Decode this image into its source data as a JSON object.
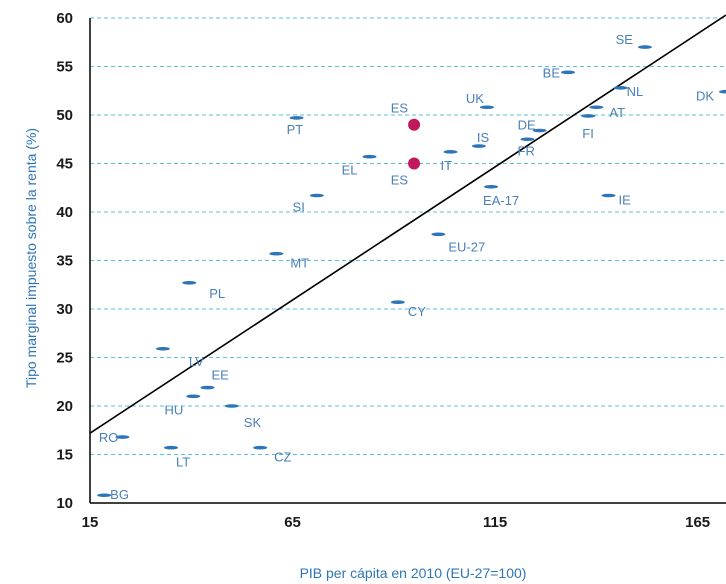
{
  "chart_data": {
    "type": "scatter",
    "title": "",
    "xlabel": "PIB per cápita en 2010  (EU-27=100)",
    "ylabel": "Tipo marginal impuesto sobre la renta (%)",
    "xlim": [
      15,
      172
    ],
    "ylim": [
      10,
      60
    ],
    "xticks": [
      "15",
      "65",
      "115",
      "165"
    ],
    "yticks": [
      "10",
      "15",
      "20",
      "25",
      "30",
      "35",
      "40",
      "45",
      "50",
      "55",
      "60"
    ],
    "grid": "horizontal-dashed",
    "colors": {
      "grid": "#5bc0de",
      "marker": "#2e75b6",
      "highlight": "#c2185b",
      "label": "#4a7fb8",
      "axis_title": "#2e75b6"
    },
    "trendline": {
      "x": [
        15,
        172
      ],
      "y": [
        17.2,
        60.3
      ]
    },
    "points": [
      {
        "label": "BG",
        "x": 18.5,
        "y": 10.8
      },
      {
        "label": "RO",
        "x": 23,
        "y": 16.8
      },
      {
        "label": "LT",
        "x": 35,
        "y": 15.7
      },
      {
        "label": "HU",
        "x": 40.5,
        "y": 21.0
      },
      {
        "label": "EE",
        "x": 44,
        "y": 21.9
      },
      {
        "label": "LV",
        "x": 33,
        "y": 25.9
      },
      {
        "label": "PL",
        "x": 39.5,
        "y": 32.7
      },
      {
        "label": "SK",
        "x": 50,
        "y": 20.0
      },
      {
        "label": "CZ",
        "x": 57,
        "y": 15.7
      },
      {
        "label": "MT",
        "x": 61,
        "y": 35.7
      },
      {
        "label": "SI",
        "x": 71,
        "y": 41.7
      },
      {
        "label": "PT",
        "x": 66,
        "y": 49.7
      },
      {
        "label": "EL",
        "x": 84,
        "y": 45.7
      },
      {
        "label": "CY",
        "x": 91,
        "y": 30.7
      },
      {
        "label": "EU-27",
        "x": 101,
        "y": 37.7
      },
      {
        "label": "EA-17",
        "x": 114,
        "y": 42.6
      },
      {
        "label": "IT",
        "x": 104,
        "y": 46.2
      },
      {
        "label": "IS",
        "x": 111,
        "y": 46.8
      },
      {
        "label": "UK",
        "x": 113,
        "y": 50.8
      },
      {
        "label": "FR",
        "x": 123,
        "y": 47.5
      },
      {
        "label": "DE",
        "x": 126,
        "y": 48.4
      },
      {
        "label": "BE",
        "x": 133,
        "y": 54.4
      },
      {
        "label": "FI",
        "x": 138,
        "y": 49.9
      },
      {
        "label": "AT",
        "x": 140,
        "y": 50.8
      },
      {
        "label": "NL",
        "x": 146,
        "y": 52.8
      },
      {
        "label": "IE",
        "x": 143,
        "y": 41.7
      },
      {
        "label": "SE",
        "x": 152,
        "y": 57.0
      },
      {
        "label": "DK",
        "x": 172,
        "y": 52.4
      },
      {
        "label": "ES",
        "x": 95,
        "y": 49.0,
        "highlight": true
      },
      {
        "label": "ES",
        "x": 95,
        "y": 45.0,
        "highlight": true
      }
    ]
  }
}
